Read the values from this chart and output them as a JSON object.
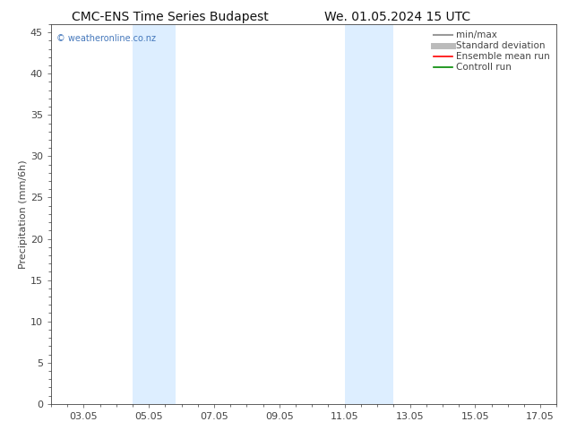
{
  "title_left": "CMC-ENS Time Series Budapest",
  "title_right": "We. 01.05.2024 15 UTC",
  "ylabel": "Precipitation (mm/6h)",
  "xlim": [
    2.0,
    17.5
  ],
  "ylim": [
    0,
    46
  ],
  "yticks": [
    0,
    5,
    10,
    15,
    20,
    25,
    30,
    35,
    40,
    45
  ],
  "xtick_labels": [
    "03.05",
    "05.05",
    "07.05",
    "09.05",
    "11.05",
    "13.05",
    "15.05",
    "17.05"
  ],
  "xtick_positions": [
    3,
    5,
    7,
    9,
    11,
    13,
    15,
    17
  ],
  "shaded_bands": [
    {
      "xmin": 4.5,
      "xmax": 5.83
    },
    {
      "xmin": 11.0,
      "xmax": 12.5
    }
  ],
  "shade_color": "#ddeeff",
  "background_color": "#ffffff",
  "watermark": "© weatheronline.co.nz",
  "watermark_color": "#4477bb",
  "legend_items": [
    {
      "label": "min/max",
      "color": "#999999",
      "lw": 1.5
    },
    {
      "label": "Standard deviation",
      "color": "#bbbbbb",
      "lw": 5
    },
    {
      "label": "Ensemble mean run",
      "color": "#ff0000",
      "lw": 1.2
    },
    {
      "label": "Controll run",
      "color": "#008800",
      "lw": 1.2
    }
  ],
  "tick_color": "#444444",
  "axis_color": "#444444",
  "font_size": 8,
  "title_font_size": 10,
  "legend_font_size": 7.5
}
